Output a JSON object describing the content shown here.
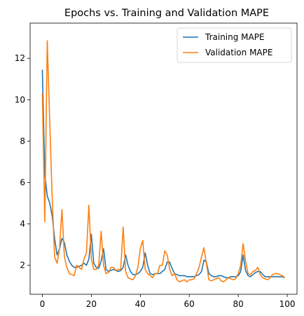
{
  "chart_data": {
    "type": "line",
    "title": "Epochs vs. Training and Validation MAPE",
    "xlabel": "",
    "ylabel": "",
    "xlim": [
      -5,
      104
    ],
    "ylim": [
      0.6,
      13.7
    ],
    "xticks": [
      0,
      20,
      40,
      60,
      80,
      100
    ],
    "yticks": [
      2,
      4,
      6,
      8,
      10,
      12
    ],
    "grid": false,
    "legend_position": "top-right",
    "series": [
      {
        "name": "Training MAPE",
        "color": "#1f77b4",
        "x": [
          0,
          1,
          2,
          3,
          4,
          5,
          6,
          7,
          8,
          9,
          10,
          11,
          12,
          13,
          14,
          15,
          16,
          17,
          18,
          19,
          20,
          21,
          22,
          23,
          24,
          25,
          26,
          27,
          28,
          29,
          30,
          31,
          32,
          33,
          34,
          35,
          36,
          37,
          38,
          39,
          40,
          41,
          42,
          43,
          44,
          45,
          46,
          47,
          48,
          49,
          50,
          51,
          52,
          53,
          54,
          55,
          56,
          57,
          58,
          59,
          60,
          61,
          62,
          63,
          64,
          65,
          66,
          67,
          68,
          69,
          70,
          71,
          72,
          73,
          74,
          75,
          76,
          77,
          78,
          79,
          80,
          81,
          82,
          83,
          84,
          85,
          86,
          87,
          88,
          89,
          90,
          91,
          92,
          93,
          94,
          95,
          96,
          97,
          98,
          99
        ],
        "values": [
          11.45,
          6.4,
          5.35,
          5.0,
          4.4,
          3.3,
          2.5,
          2.8,
          3.3,
          3.1,
          2.5,
          2.2,
          2.0,
          1.9,
          1.9,
          1.95,
          2.0,
          2.1,
          2.0,
          2.3,
          3.5,
          2.1,
          1.9,
          1.85,
          2.2,
          2.8,
          1.8,
          1.7,
          1.75,
          1.8,
          1.75,
          1.7,
          1.75,
          1.9,
          2.5,
          2.0,
          1.7,
          1.55,
          1.55,
          1.6,
          1.7,
          1.9,
          2.6,
          2.0,
          1.6,
          1.55,
          1.6,
          1.6,
          1.6,
          1.7,
          1.8,
          2.15,
          2.15,
          1.85,
          1.6,
          1.55,
          1.5,
          1.5,
          1.5,
          1.45,
          1.45,
          1.45,
          1.45,
          1.5,
          1.55,
          1.7,
          2.25,
          2.15,
          1.6,
          1.5,
          1.45,
          1.45,
          1.5,
          1.5,
          1.45,
          1.4,
          1.4,
          1.45,
          1.45,
          1.45,
          1.5,
          1.7,
          2.5,
          1.75,
          1.5,
          1.45,
          1.55,
          1.65,
          1.7,
          1.7,
          1.55,
          1.45,
          1.45,
          1.45,
          1.45,
          1.45,
          1.45,
          1.45,
          1.45,
          1.4
        ]
      },
      {
        "name": "Validation MAPE",
        "color": "#ff7f0e",
        "x": [
          0,
          1,
          2,
          3,
          4,
          5,
          6,
          7,
          8,
          9,
          10,
          11,
          12,
          13,
          14,
          15,
          16,
          17,
          18,
          19,
          20,
          21,
          22,
          23,
          24,
          25,
          26,
          27,
          28,
          29,
          30,
          31,
          32,
          33,
          34,
          35,
          36,
          37,
          38,
          39,
          40,
          41,
          42,
          43,
          44,
          45,
          46,
          47,
          48,
          49,
          50,
          51,
          52,
          53,
          54,
          55,
          56,
          57,
          58,
          59,
          60,
          61,
          62,
          63,
          64,
          65,
          66,
          67,
          68,
          69,
          70,
          71,
          72,
          73,
          74,
          75,
          76,
          77,
          78,
          79,
          80,
          81,
          82,
          83,
          84,
          85,
          86,
          87,
          88,
          89,
          90,
          91,
          92,
          93,
          94,
          95,
          96,
          97,
          98,
          99
        ],
        "values": [
          10.3,
          4.1,
          12.85,
          9.0,
          5.3,
          2.4,
          2.1,
          2.8,
          4.7,
          2.4,
          1.9,
          1.6,
          1.55,
          1.5,
          2.0,
          1.9,
          1.8,
          2.3,
          2.6,
          4.9,
          2.3,
          1.8,
          1.8,
          2.0,
          3.65,
          2.0,
          1.6,
          1.65,
          1.9,
          1.9,
          1.75,
          1.8,
          1.8,
          3.85,
          1.7,
          1.4,
          1.35,
          1.3,
          1.5,
          1.9,
          2.8,
          3.2,
          1.8,
          1.6,
          1.5,
          1.4,
          1.6,
          1.6,
          2.0,
          2.0,
          2.7,
          2.5,
          1.8,
          1.5,
          1.6,
          1.3,
          1.2,
          1.25,
          1.3,
          1.2,
          1.3,
          1.3,
          1.35,
          1.6,
          1.9,
          2.4,
          2.85,
          2.1,
          1.3,
          1.25,
          1.3,
          1.35,
          1.4,
          1.25,
          1.2,
          1.3,
          1.4,
          1.35,
          1.3,
          1.35,
          1.6,
          2.0,
          3.05,
          2.2,
          1.6,
          1.55,
          1.7,
          1.75,
          1.9,
          1.55,
          1.4,
          1.35,
          1.3,
          1.4,
          1.55,
          1.6,
          1.6,
          1.55,
          1.5,
          1.4
        ]
      }
    ]
  }
}
